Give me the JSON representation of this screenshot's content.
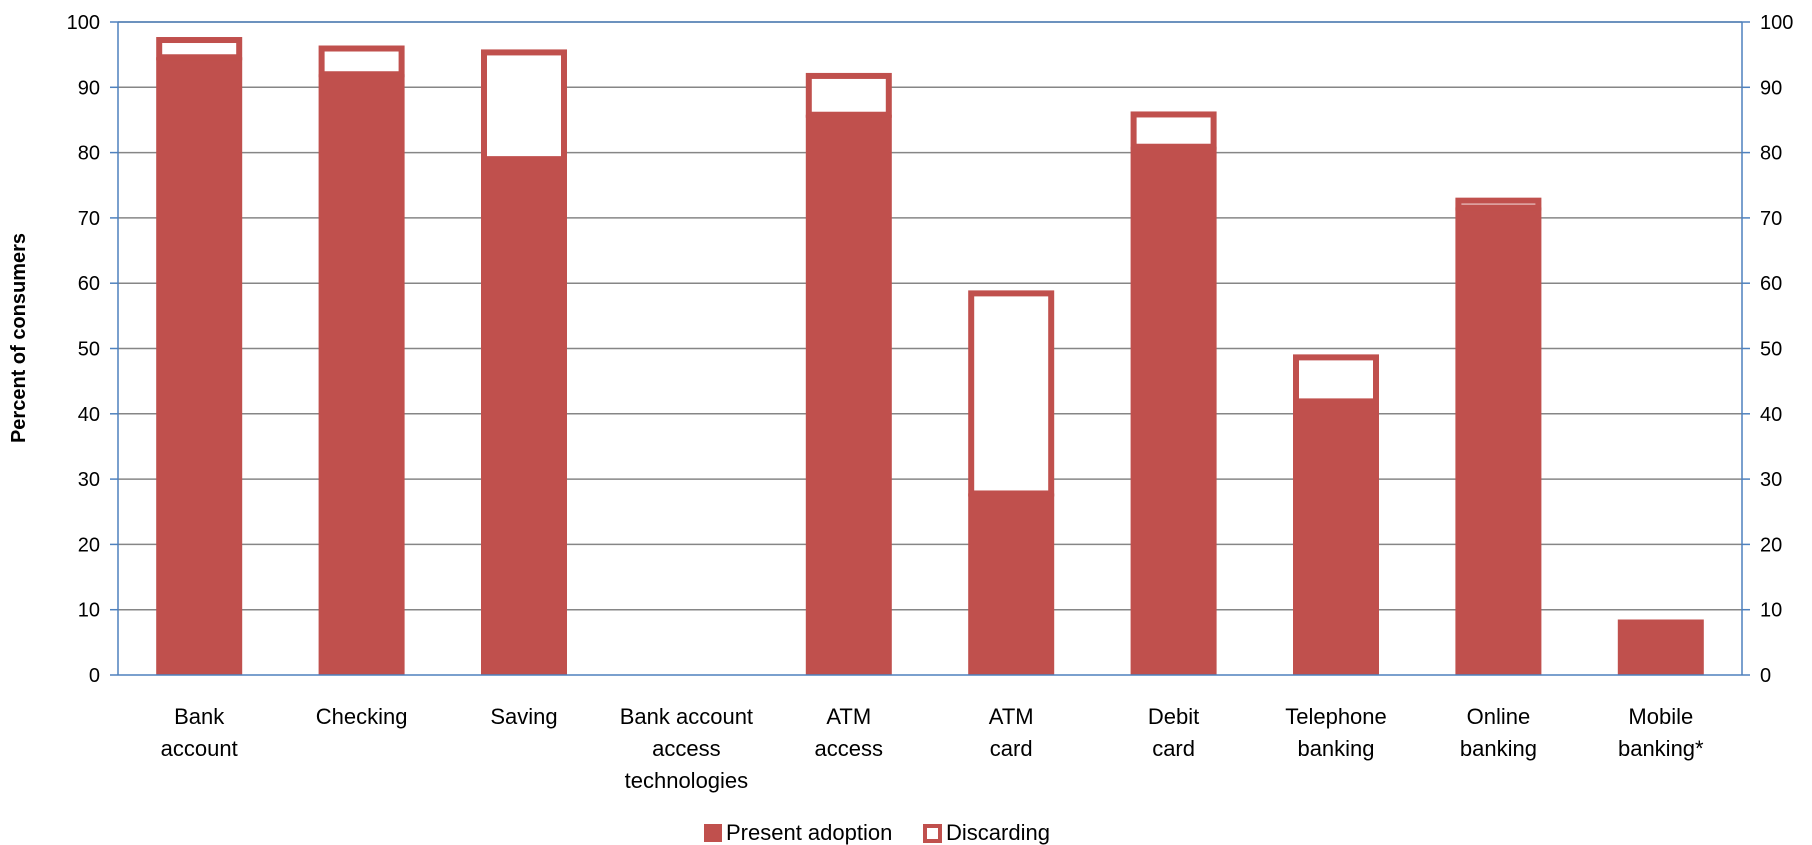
{
  "chart_data": {
    "type": "bar",
    "stacked": true,
    "ylabel": "Percent of consumers",
    "xlabel": "",
    "ylim": [
      0,
      100
    ],
    "yticks": [
      0,
      10,
      20,
      30,
      40,
      50,
      60,
      70,
      80,
      90,
      100
    ],
    "secondary_y_axis": true,
    "grid": true,
    "legend_position": "bottom",
    "categories": [
      [
        "Bank",
        "account"
      ],
      [
        "Checking"
      ],
      [
        "Saving"
      ],
      [
        "Bank account",
        "access",
        "technologies"
      ],
      [
        "ATM",
        "access"
      ],
      [
        "ATM",
        "card"
      ],
      [
        "Debit",
        "card"
      ],
      [
        "Telephone",
        "banking"
      ],
      [
        "Online",
        "banking"
      ],
      [
        "Mobile",
        "banking*"
      ]
    ],
    "series": [
      {
        "name": "Present adoption",
        "color": "#c0504d",
        "style": "filled",
        "values": [
          94.6,
          92.0,
          79.0,
          null,
          85.8,
          27.8,
          80.9,
          41.9,
          71.6,
          8.5
        ]
      },
      {
        "name": "Discarding",
        "color": "#c0504d",
        "style": "outline",
        "values": [
          3.1,
          4.4,
          16.8,
          null,
          6.4,
          31.1,
          5.4,
          7.2,
          1.5,
          0
        ]
      }
    ],
    "colors": {
      "bar": "#c0504d",
      "axis": "#4f81bd",
      "grid": "#868686"
    }
  }
}
